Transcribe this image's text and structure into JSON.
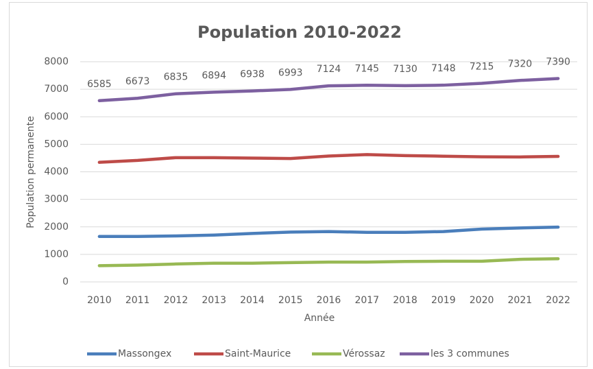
{
  "chart_data": {
    "type": "line",
    "title": "Population 2010-2022",
    "x_label": "Année",
    "y_label": "Population permanente",
    "categories": [
      "2010",
      "2011",
      "2012",
      "2013",
      "2014",
      "2015",
      "2016",
      "2017",
      "2018",
      "2019",
      "2020",
      "2021",
      "2022"
    ],
    "series": [
      {
        "name": "Massongex",
        "color": "#4a7ebb",
        "values": [
          1650,
          1650,
          1670,
          1700,
          1760,
          1810,
          1830,
          1800,
          1800,
          1830,
          1920,
          1960,
          1990
        ]
      },
      {
        "name": "Saint-Maurice",
        "color": "#be4b48",
        "values": [
          4345,
          4413,
          4515,
          4514,
          4498,
          4483,
          4574,
          4625,
          4590,
          4568,
          4545,
          4540,
          4560
        ]
      },
      {
        "name": "Vérossaz",
        "color": "#98b954",
        "values": [
          590,
          610,
          650,
          680,
          680,
          700,
          720,
          720,
          740,
          750,
          750,
          820,
          840
        ]
      },
      {
        "name": "les 3 communes",
        "color": "#7d60a0",
        "values": [
          6585,
          6673,
          6835,
          6894,
          6938,
          6993,
          7124,
          7145,
          7130,
          7148,
          7215,
          7320,
          7390
        ],
        "data_labels": true
      }
    ],
    "ylim": [
      0,
      8000
    ],
    "yticks": [
      0,
      1000,
      2000,
      3000,
      4000,
      5000,
      6000,
      7000,
      8000
    ],
    "grid": true,
    "legend": "bottom"
  }
}
